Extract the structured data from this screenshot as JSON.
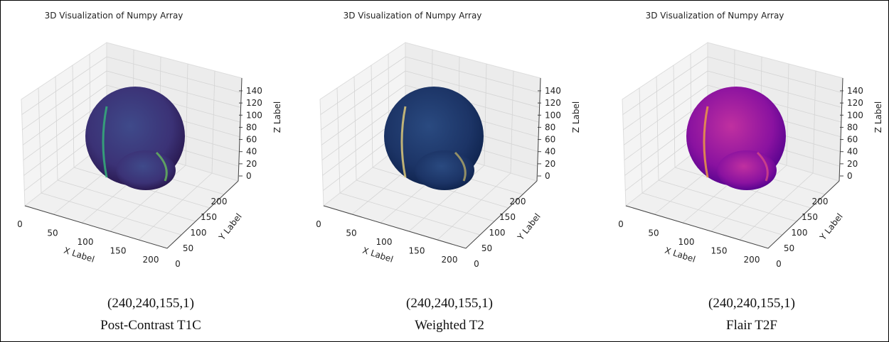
{
  "panels": [
    {
      "title": "3D Visualization of Numpy Array",
      "x_label": "X Label",
      "y_label": "Y Label",
      "z_label": "Z Label",
      "x_ticks": [
        0,
        50,
        100,
        150,
        200
      ],
      "y_ticks": [
        0,
        50,
        100,
        150,
        200
      ],
      "z_ticks": [
        0,
        20,
        40,
        60,
        80,
        100,
        120,
        140
      ],
      "shape": "(240,240,155,1)",
      "caption": "Post-Contrast T1C"
    },
    {
      "title": "3D Visualization of Numpy Array",
      "x_label": "X Label",
      "y_label": "Y Label",
      "z_label": "Z Label",
      "x_ticks": [
        0,
        50,
        100,
        150,
        200
      ],
      "y_ticks": [
        0,
        50,
        100,
        150,
        200
      ],
      "z_ticks": [
        0,
        20,
        40,
        60,
        80,
        100,
        120,
        140
      ],
      "shape": "(240,240,155,1)",
      "caption": "Weighted T2"
    },
    {
      "title": "3D Visualization of Numpy Array",
      "x_label": "X Label",
      "y_label": "Y Label",
      "z_label": "Z Label",
      "x_ticks": [
        0,
        50,
        100,
        150,
        200
      ],
      "y_ticks": [
        0,
        50,
        100,
        150,
        200
      ],
      "z_ticks": [
        0,
        20,
        40,
        60,
        80,
        100,
        120,
        140
      ],
      "shape": "(240,240,155,1)",
      "caption": "Flair T2F"
    }
  ]
}
